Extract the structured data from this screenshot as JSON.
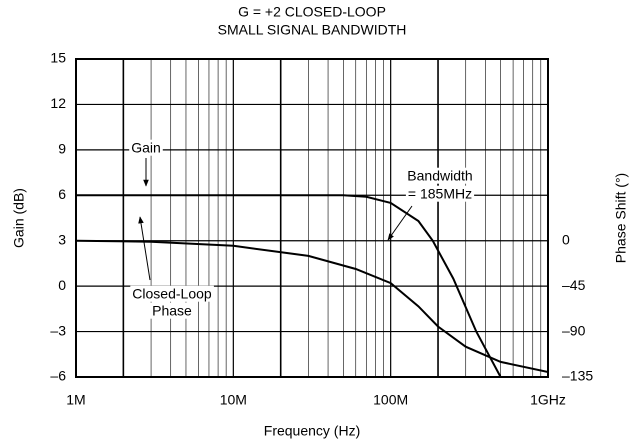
{
  "chart_data": {
    "type": "line",
    "title": [
      "G = +2 CLOSED-LOOP",
      "SMALL SIGNAL BANDWIDTH"
    ],
    "xlabel": "Frequency (Hz)",
    "ylabel": "Gain (dB)",
    "y2label": "Phase Shift (°)",
    "xscale": "log",
    "xlim": [
      1000000,
      1000000000
    ],
    "xticks": [
      {
        "value": 1000000,
        "label": "1M"
      },
      {
        "value": 10000000,
        "label": "10M"
      },
      {
        "value": 100000000,
        "label": "100M"
      },
      {
        "value": 1000000000,
        "label": "1GHz"
      }
    ],
    "ylim": [
      -6,
      15
    ],
    "yticks": [
      {
        "value": -6,
        "label": "–6"
      },
      {
        "value": -3,
        "label": "–3"
      },
      0,
      3,
      6,
      9,
      12,
      15
    ],
    "y2lim": [
      -135,
      180
    ],
    "y2ticks": [
      {
        "value": -135,
        "label": "–135"
      },
      {
        "value": -90,
        "label": "–90"
      },
      {
        "value": -45,
        "label": "–45"
      },
      0
    ],
    "grid": true,
    "minor_grid": true,
    "series": [
      {
        "name": "Gain",
        "color": "#000000",
        "x": [
          1000000,
          50000000,
          70000000,
          100000000,
          150000000,
          185000000,
          250000000,
          350000000,
          500000000
        ],
        "values": [
          6,
          6,
          5.9,
          5.5,
          4.3,
          3,
          0.5,
          -3,
          -6
        ]
      },
      {
        "name": "Closed-Loop Phase",
        "color": "#000000",
        "axis": "y2",
        "x": [
          1000000,
          3000000,
          10000000,
          30000000,
          60000000,
          100000000,
          150000000,
          200000000,
          300000000,
          500000000,
          1000000000
        ],
        "values": [
          0,
          -1,
          -5,
          -15,
          -28,
          -42,
          -65,
          -85,
          -105,
          -120,
          -130
        ]
      }
    ],
    "annotations": [
      "Gain",
      "Bandwidth",
      "= 185MHz",
      "Closed-Loop",
      "Phase"
    ]
  }
}
